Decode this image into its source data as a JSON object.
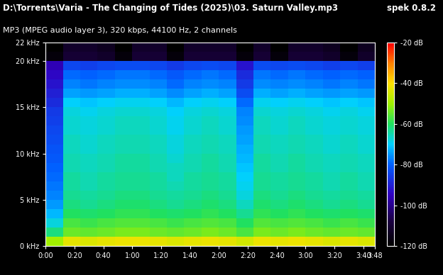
{
  "chart_data": {
    "type": "heatmap",
    "title": "D:\\Torrents\\Varia - The Changing of Tides (2025)\\03. Saturn Valley.mp3",
    "subtitle": "MP3 (MPEG audio layer 3), 320 kbps, 44100 Hz, 2 channels",
    "annotations": [
      "spek 0.8.2"
    ],
    "x_edges": [
      0,
      12,
      24,
      36,
      48,
      60,
      72,
      84,
      96,
      108,
      120,
      132,
      144,
      156,
      168,
      180,
      192,
      204,
      216,
      228
    ],
    "y_edges": [
      0,
      1,
      2,
      3,
      4,
      5,
      6,
      7,
      8,
      9,
      10,
      11,
      12,
      13,
      14,
      15,
      16,
      17,
      18,
      19,
      20,
      21,
      22
    ],
    "cells": [
      [
        -50,
        -43,
        -44,
        -43,
        -42,
        -42,
        -43,
        -44,
        -43,
        -42,
        -43,
        -45,
        -42,
        -43,
        -42,
        -43,
        -44,
        -43,
        -44
      ],
      [
        -62,
        -54,
        -55,
        -54,
        -53,
        -53,
        -54,
        -55,
        -54,
        -53,
        -54,
        -57,
        -53,
        -54,
        -53,
        -54,
        -55,
        -54,
        -55
      ],
      [
        -68,
        -57,
        -58,
        -57,
        -56,
        -56,
        -57,
        -58,
        -57,
        -56,
        -57,
        -60,
        -56,
        -57,
        -56,
        -57,
        -58,
        -57,
        -58
      ],
      [
        -72,
        -60,
        -61,
        -60,
        -59,
        -59,
        -60,
        -61,
        -60,
        -59,
        -60,
        -63,
        -59,
        -60,
        -59,
        -60,
        -61,
        -60,
        -61
      ],
      [
        -75,
        -62,
        -63,
        -62,
        -61,
        -61,
        -62,
        -63,
        -62,
        -61,
        -62,
        -66,
        -61,
        -62,
        -61,
        -62,
        -63,
        -62,
        -63
      ],
      [
        -77,
        -63,
        -64,
        -63,
        -62,
        -62,
        -63,
        -64,
        -63,
        -62,
        -63,
        -68,
        -62,
        -63,
        -62,
        -63,
        -64,
        -63,
        -64
      ],
      [
        -78,
        -64,
        -65,
        -64,
        -63,
        -63,
        -64,
        -65,
        -64,
        -63,
        -64,
        -69,
        -63,
        -64,
        -63,
        -64,
        -65,
        -64,
        -65
      ],
      [
        -79,
        -64,
        -65,
        -64,
        -63,
        -63,
        -64,
        -66,
        -64,
        -63,
        -64,
        -70,
        -63,
        -64,
        -63,
        -64,
        -65,
        -64,
        -65
      ],
      [
        -80,
        -65,
        -66,
        -65,
        -64,
        -64,
        -65,
        -66,
        -65,
        -64,
        -65,
        -71,
        -64,
        -65,
        -64,
        -65,
        -66,
        -65,
        -66
      ],
      [
        -81,
        -65,
        -66,
        -65,
        -64,
        -64,
        -65,
        -67,
        -65,
        -64,
        -65,
        -72,
        -64,
        -65,
        -64,
        -65,
        -66,
        -65,
        -66
      ],
      [
        -82,
        -66,
        -67,
        -66,
        -65,
        -65,
        -66,
        -68,
        -66,
        -65,
        -66,
        -73,
        -65,
        -66,
        -65,
        -66,
        -67,
        -66,
        -67
      ],
      [
        -83,
        -66,
        -67,
        -66,
        -65,
        -65,
        -66,
        -68,
        -66,
        -65,
        -66,
        -74,
        -65,
        -66,
        -65,
        -66,
        -67,
        -66,
        -67
      ],
      [
        -84,
        -67,
        -68,
        -67,
        -66,
        -66,
        -67,
        -69,
        -67,
        -66,
        -67,
        -75,
        -66,
        -67,
        -66,
        -67,
        -68,
        -67,
        -68
      ],
      [
        -85,
        -67,
        -68,
        -67,
        -66,
        -66,
        -67,
        -69,
        -67,
        -66,
        -67,
        -76,
        -66,
        -67,
        -66,
        -67,
        -68,
        -67,
        -68
      ],
      [
        -86,
        -68,
        -69,
        -68,
        -67,
        -67,
        -68,
        -70,
        -68,
        -67,
        -68,
        -77,
        -67,
        -68,
        -67,
        -68,
        -69,
        -68,
        -69
      ],
      [
        -88,
        -70,
        -71,
        -70,
        -69,
        -69,
        -70,
        -72,
        -70,
        -69,
        -70,
        -79,
        -69,
        -70,
        -69,
        -70,
        -71,
        -70,
        -71
      ],
      [
        -90,
        -74,
        -75,
        -74,
        -73,
        -73,
        -74,
        -76,
        -74,
        -73,
        -74,
        -83,
        -73,
        -74,
        -73,
        -74,
        -75,
        -74,
        -75
      ],
      [
        -92,
        -77,
        -78,
        -77,
        -76,
        -76,
        -77,
        -79,
        -77,
        -76,
        -77,
        -86,
        -76,
        -77,
        -76,
        -77,
        -78,
        -77,
        -78
      ],
      [
        -94,
        -79,
        -80,
        -79,
        -78,
        -78,
        -79,
        -81,
        -79,
        -78,
        -79,
        -88,
        -78,
        -79,
        -78,
        -79,
        -80,
        -79,
        -80
      ],
      [
        -96,
        -84,
        -85,
        -84,
        -83,
        -83,
        -84,
        -86,
        -84,
        -83,
        -84,
        -92,
        -83,
        -84,
        -83,
        -84,
        -85,
        -84,
        -85
      ],
      [
        -118,
        -110,
        -110,
        -112,
        -118,
        -110,
        -110,
        -118,
        -110,
        -110,
        -110,
        -118,
        -110,
        -118,
        -110,
        -110,
        -112,
        -118,
        -112
      ],
      [
        -120,
        -112,
        -112,
        -114,
        -120,
        -112,
        -112,
        -120,
        -112,
        -112,
        -112,
        -120,
        -112,
        -120,
        -112,
        -112,
        -114,
        -120,
        -114
      ]
    ],
    "xlim": [
      0,
      228
    ],
    "xticks": [
      {
        "value": 0,
        "label": "0:00"
      },
      {
        "value": 20,
        "label": "0:20"
      },
      {
        "value": 40,
        "label": "0:40"
      },
      {
        "value": 60,
        "label": "1:00"
      },
      {
        "value": 80,
        "label": "1:20"
      },
      {
        "value": 100,
        "label": "1:40"
      },
      {
        "value": 120,
        "label": "2:00"
      },
      {
        "value": 140,
        "label": "2:20"
      },
      {
        "value": 160,
        "label": "2:40"
      },
      {
        "value": 180,
        "label": "3:00"
      },
      {
        "value": 200,
        "label": "3:20"
      },
      {
        "value": 220,
        "label": "3:40"
      },
      {
        "value": 228,
        "label": "3:48"
      }
    ],
    "ylim": [
      0,
      22
    ],
    "yticks": [
      {
        "value": 0,
        "label": "0 kHz"
      },
      {
        "value": 5,
        "label": "5 kHz"
      },
      {
        "value": 10,
        "label": "10 kHz"
      },
      {
        "value": 15,
        "label": "15 kHz"
      },
      {
        "value": 20,
        "label": "20 kHz"
      },
      {
        "value": 22,
        "label": "22 kHz"
      }
    ],
    "colorbar_range": [
      -120,
      -20
    ],
    "colorbar_ticks": [
      {
        "value": -20,
        "label": "-20 dB"
      },
      {
        "value": -40,
        "label": "-40 dB"
      },
      {
        "value": -60,
        "label": "-60 dB"
      },
      {
        "value": -80,
        "label": "-80 dB"
      },
      {
        "value": -100,
        "label": "-100 dB"
      },
      {
        "value": -120,
        "label": "-120 dB"
      }
    ]
  }
}
